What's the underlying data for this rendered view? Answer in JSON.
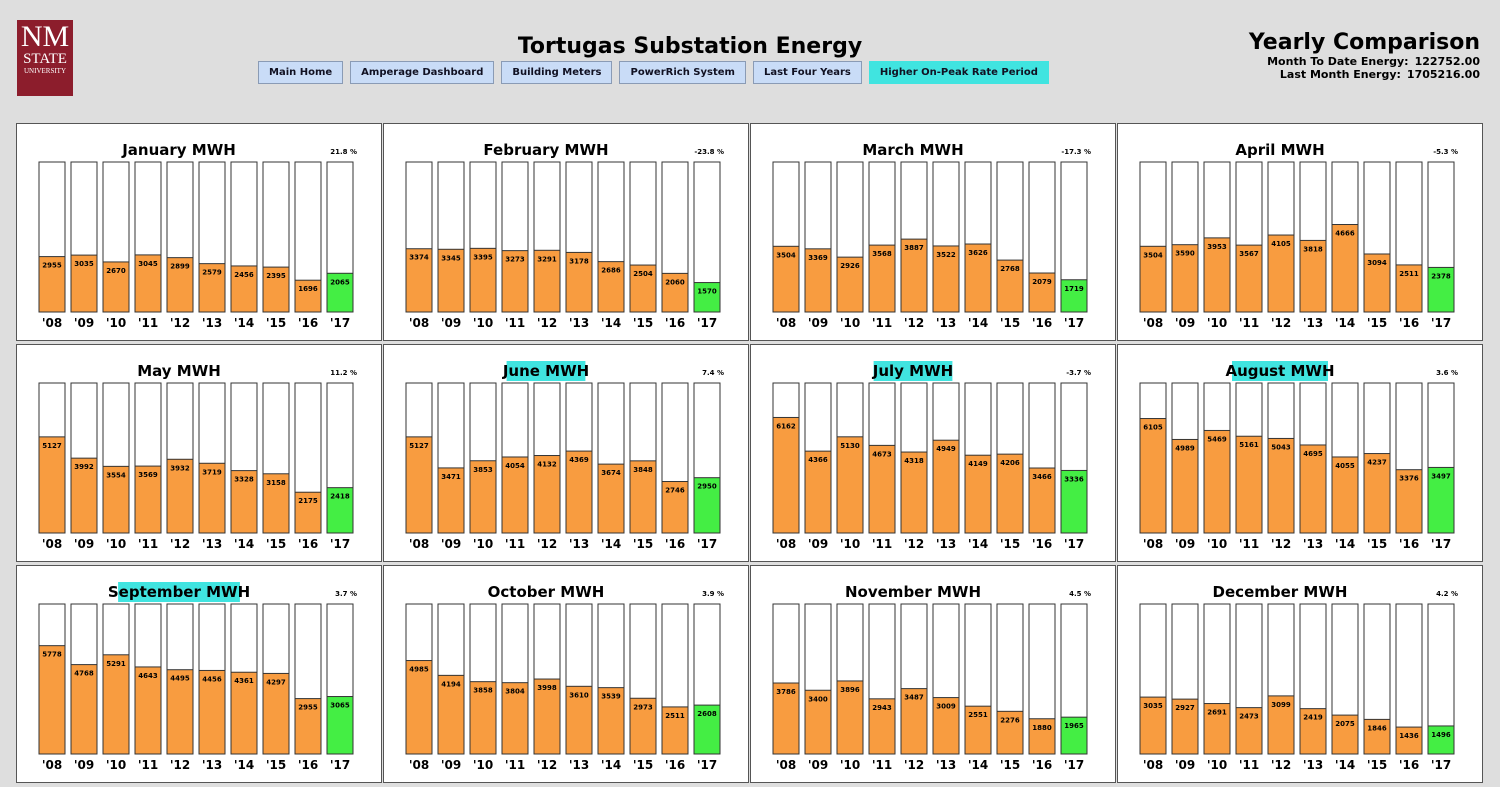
{
  "header": {
    "logo": [
      "NM",
      "STATE",
      "UNIVERSITY"
    ],
    "title": "Tortugas Substation Energy",
    "nav": [
      "Main Home",
      "Amperage Dashboard",
      "Building Meters",
      "PowerRich System",
      "Last Four Years",
      "Higher On-Peak Rate Period"
    ],
    "right_title": "Yearly Comparison",
    "stats": [
      {
        "label": "Month To Date Energy:",
        "value": "122752.00"
      },
      {
        "label": "Last Month Energy:",
        "value": "1705216.00"
      }
    ]
  },
  "chart_data": [
    {
      "type": "bar",
      "title": "January MWH",
      "change": "21.8 %",
      "highlight": false,
      "categories": [
        "'08",
        "'09",
        "'10",
        "'11",
        "'12",
        "'13",
        "'14",
        "'15",
        "'16",
        "'17"
      ],
      "values": [
        2955,
        3035,
        2670,
        3045,
        2899,
        2579,
        2456,
        2395,
        1696,
        2065
      ],
      "ylim": [
        0,
        8000
      ],
      "color": "#f89c40",
      "current_color": "#44ee44"
    },
    {
      "type": "bar",
      "title": "February MWH",
      "change": "-23.8 %",
      "highlight": false,
      "categories": [
        "'08",
        "'09",
        "'10",
        "'11",
        "'12",
        "'13",
        "'14",
        "'15",
        "'16",
        "'17"
      ],
      "values": [
        3374,
        3345,
        3395,
        3273,
        3291,
        3178,
        2686,
        2504,
        2060,
        1570
      ],
      "ylim": [
        0,
        8000
      ],
      "color": "#f89c40",
      "current_color": "#44ee44"
    },
    {
      "type": "bar",
      "title": "March MWH",
      "change": "-17.3 %",
      "highlight": false,
      "categories": [
        "'08",
        "'09",
        "'10",
        "'11",
        "'12",
        "'13",
        "'14",
        "'15",
        "'16",
        "'17"
      ],
      "values": [
        3504,
        3369,
        2926,
        3568,
        3887,
        3522,
        3626,
        2768,
        2079,
        1719
      ],
      "ylim": [
        0,
        8000
      ],
      "color": "#f89c40",
      "current_color": "#44ee44"
    },
    {
      "type": "bar",
      "title": "April MWH",
      "change": "-5.3 %",
      "highlight": false,
      "categories": [
        "'08",
        "'09",
        "'10",
        "'11",
        "'12",
        "'13",
        "'14",
        "'15",
        "'16",
        "'17"
      ],
      "values": [
        3504,
        3590,
        3953,
        3567,
        4105,
        3818,
        4666,
        3094,
        2511,
        2378
      ],
      "ylim": [
        0,
        8000
      ],
      "color": "#f89c40",
      "current_color": "#44ee44"
    },
    {
      "type": "bar",
      "title": "May MWH",
      "change": "11.2 %",
      "highlight": false,
      "categories": [
        "'08",
        "'09",
        "'10",
        "'11",
        "'12",
        "'13",
        "'14",
        "'15",
        "'16",
        "'17"
      ],
      "values": [
        5127,
        3992,
        3554,
        3569,
        3932,
        3719,
        3328,
        3158,
        2175,
        2418
      ],
      "ylim": [
        0,
        8000
      ],
      "color": "#f89c40",
      "current_color": "#44ee44"
    },
    {
      "type": "bar",
      "title": "June MWH",
      "change": "7.4 %",
      "highlight": true,
      "categories": [
        "'08",
        "'09",
        "'10",
        "'11",
        "'12",
        "'13",
        "'14",
        "'15",
        "'16",
        "'17"
      ],
      "values": [
        5127,
        3471,
        3853,
        4054,
        4132,
        4369,
        3674,
        3848,
        2746,
        2950
      ],
      "ylim": [
        0,
        8000
      ],
      "color": "#f89c40",
      "current_color": "#44ee44"
    },
    {
      "type": "bar",
      "title": "July MWH",
      "change": "-3.7 %",
      "highlight": true,
      "categories": [
        "'08",
        "'09",
        "'10",
        "'11",
        "'12",
        "'13",
        "'14",
        "'15",
        "'16",
        "'17"
      ],
      "values": [
        6162,
        4366,
        5130,
        4673,
        4318,
        4949,
        4149,
        4206,
        3466,
        3336
      ],
      "ylim": [
        0,
        8000
      ],
      "color": "#f89c40",
      "current_color": "#44ee44"
    },
    {
      "type": "bar",
      "title": "August MWH",
      "change": "3.6 %",
      "highlight": true,
      "categories": [
        "'08",
        "'09",
        "'10",
        "'11",
        "'12",
        "'13",
        "'14",
        "'15",
        "'16",
        "'17"
      ],
      "values": [
        6105,
        4989,
        5469,
        5161,
        5043,
        4695,
        4055,
        4237,
        3376,
        3497
      ],
      "ylim": [
        0,
        8000
      ],
      "color": "#f89c40",
      "current_color": "#44ee44"
    },
    {
      "type": "bar",
      "title": "September MWH",
      "change": "3.7 %",
      "highlight": true,
      "categories": [
        "'08",
        "'09",
        "'10",
        "'11",
        "'12",
        "'13",
        "'14",
        "'15",
        "'16",
        "'17"
      ],
      "values": [
        5778,
        4768,
        5291,
        4643,
        4495,
        4456,
        4361,
        4297,
        2955,
        3065
      ],
      "ylim": [
        0,
        8000
      ],
      "color": "#f89c40",
      "current_color": "#44ee44"
    },
    {
      "type": "bar",
      "title": "October MWH",
      "change": "3.9 %",
      "highlight": false,
      "categories": [
        "'08",
        "'09",
        "'10",
        "'11",
        "'12",
        "'13",
        "'14",
        "'15",
        "'16",
        "'17"
      ],
      "values": [
        4985,
        4194,
        3858,
        3804,
        3998,
        3610,
        3539,
        2973,
        2511,
        2608
      ],
      "ylim": [
        0,
        8000
      ],
      "color": "#f89c40",
      "current_color": "#44ee44"
    },
    {
      "type": "bar",
      "title": "November MWH",
      "change": "4.5 %",
      "highlight": false,
      "categories": [
        "'08",
        "'09",
        "'10",
        "'11",
        "'12",
        "'13",
        "'14",
        "'15",
        "'16",
        "'17"
      ],
      "values": [
        3786,
        3400,
        3896,
        2943,
        3487,
        3009,
        2551,
        2276,
        1880,
        1965
      ],
      "ylim": [
        0,
        8000
      ],
      "color": "#f89c40",
      "current_color": "#44ee44"
    },
    {
      "type": "bar",
      "title": "December MWH",
      "change": "4.2 %",
      "highlight": false,
      "categories": [
        "'08",
        "'09",
        "'10",
        "'11",
        "'12",
        "'13",
        "'14",
        "'15",
        "'16",
        "'17"
      ],
      "values": [
        3035,
        2927,
        2691,
        2473,
        3099,
        2419,
        2075,
        1846,
        1436,
        1496
      ],
      "ylim": [
        0,
        8000
      ],
      "color": "#f89c40",
      "current_color": "#44ee44"
    }
  ]
}
